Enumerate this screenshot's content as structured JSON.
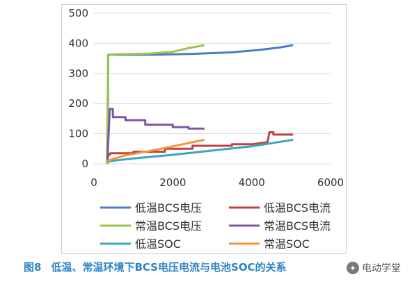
{
  "figure": {
    "caption_number": "图8",
    "caption_text": "低温、常温环境下BCS电压电流与电池SOC的关系",
    "watermark_text": "电动学堂"
  },
  "colors": {
    "low_voltage": "#4a7cc7",
    "normal_voltage": "#9ac44e",
    "low_current": "#c0413f",
    "normal_current": "#7b57a6",
    "low_soc": "#35a7c2",
    "normal_soc": "#f39437"
  },
  "chart_data": {
    "type": "line",
    "title": "",
    "xlabel": "",
    "ylabel": "",
    "xlim": [
      0,
      6000
    ],
    "ylim": [
      0,
      500
    ],
    "x_ticks": [
      "0",
      "2000",
      "4000",
      "6000"
    ],
    "y_ticks": [
      "0",
      "100",
      "200",
      "300",
      "400",
      "500"
    ],
    "grid": "horizontal",
    "legend_position": "bottom",
    "series": [
      {
        "name": "低温BCS电压",
        "color": "#4a7cc7",
        "points": [
          [
            350,
            0
          ],
          [
            360,
            362
          ],
          [
            600,
            362
          ],
          [
            1500,
            362
          ],
          [
            2500,
            365
          ],
          [
            3500,
            370
          ],
          [
            4200,
            378
          ],
          [
            4700,
            386
          ],
          [
            5050,
            394
          ]
        ]
      },
      {
        "name": "低温BCS电流",
        "color": "#c0413f",
        "points": [
          [
            360,
            25
          ],
          [
            420,
            35
          ],
          [
            1000,
            35
          ],
          [
            1000,
            40
          ],
          [
            1800,
            40
          ],
          [
            1800,
            50
          ],
          [
            2500,
            50
          ],
          [
            2500,
            60
          ],
          [
            3500,
            60
          ],
          [
            3500,
            65
          ],
          [
            4000,
            65
          ],
          [
            4400,
            72
          ],
          [
            4450,
            105
          ],
          [
            4550,
            105
          ],
          [
            4550,
            97
          ],
          [
            5050,
            97
          ]
        ]
      },
      {
        "name": "常温BCS电压",
        "color": "#9ac44e",
        "points": [
          [
            330,
            0
          ],
          [
            360,
            362
          ],
          [
            700,
            364
          ],
          [
            1400,
            366
          ],
          [
            2000,
            372
          ],
          [
            2400,
            384
          ],
          [
            2800,
            394
          ]
        ]
      },
      {
        "name": "常温BCS电流",
        "color": "#7b57a6",
        "points": [
          [
            340,
            10
          ],
          [
            400,
            182
          ],
          [
            480,
            182
          ],
          [
            480,
            155
          ],
          [
            800,
            155
          ],
          [
            800,
            145
          ],
          [
            1300,
            145
          ],
          [
            1300,
            130
          ],
          [
            2000,
            130
          ],
          [
            2000,
            122
          ],
          [
            2400,
            122
          ],
          [
            2400,
            117
          ],
          [
            2800,
            117
          ]
        ]
      },
      {
        "name": "低温SOC",
        "color": "#35a7c2",
        "points": [
          [
            340,
            8
          ],
          [
            1000,
            18
          ],
          [
            2000,
            30
          ],
          [
            3000,
            44
          ],
          [
            4000,
            58
          ],
          [
            5050,
            80
          ]
        ]
      },
      {
        "name": "常温SOC",
        "color": "#f39437",
        "points": [
          [
            340,
            10
          ],
          [
            800,
            28
          ],
          [
            1500,
            45
          ],
          [
            2000,
            58
          ],
          [
            2500,
            72
          ],
          [
            2800,
            80
          ]
        ]
      }
    ]
  }
}
